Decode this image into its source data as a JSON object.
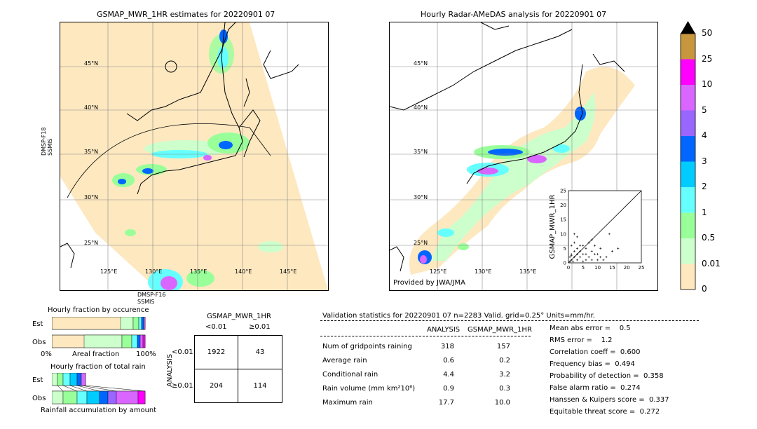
{
  "left_map": {
    "title": "GSMAP_MWR_1HR estimates for 20220901 07",
    "sensor_left": [
      "DMSP-F18",
      "SSMIS"
    ],
    "sensor_bottom": [
      "DMSP-F16",
      "SSMIS"
    ],
    "lat_labels": [
      "45°N",
      "40°N",
      "35°N",
      "30°N",
      "25°N"
    ],
    "lon_labels": [
      "125°E",
      "130°E",
      "135°E",
      "140°E",
      "145°E"
    ]
  },
  "right_map": {
    "title": "Hourly Radar-AMeDAS analysis for 20220901 07",
    "credit": "Provided by JWA/JMA",
    "lat_labels": [
      "45°N",
      "40°N",
      "35°N",
      "30°N",
      "25°N"
    ],
    "lon_labels": [
      "125°E",
      "130°E",
      "135°E"
    ]
  },
  "colorbar": {
    "labels": [
      "50",
      "25",
      "10",
      "5",
      "4",
      "3",
      "2",
      "1",
      "0.5",
      "0.01",
      "0"
    ],
    "colors": [
      "#c8963c",
      "#ff00ff",
      "#d966ff",
      "#9966ff",
      "#0066ff",
      "#00ccff",
      "#66ffff",
      "#99ff99",
      "#ccffcc",
      "#ffe8c0"
    ]
  },
  "chart_data": [
    {
      "type": "scatter",
      "title": "",
      "xlabel": "ANALYSIS",
      "ylabel": "GSMAP_MWR_1HR",
      "xlim": [
        0,
        25
      ],
      "ylim": [
        0,
        25
      ],
      "xticks": [
        "0",
        "5",
        "10",
        "15",
        "20",
        "25"
      ],
      "yticks": [
        "0",
        "5",
        "10",
        "15",
        "20",
        "25"
      ],
      "points": [
        [
          1,
          1
        ],
        [
          2,
          2
        ],
        [
          1,
          3
        ],
        [
          3,
          1
        ],
        [
          4,
          2
        ],
        [
          2,
          4
        ],
        [
          5,
          3
        ],
        [
          6,
          1
        ],
        [
          7,
          2
        ],
        [
          3,
          5
        ],
        [
          8,
          1
        ],
        [
          9,
          3
        ],
        [
          1,
          6
        ],
        [
          2,
          7
        ],
        [
          4,
          6
        ],
        [
          10,
          3
        ],
        [
          11,
          5
        ],
        [
          13,
          2
        ],
        [
          14,
          10
        ],
        [
          8,
          8
        ],
        [
          3,
          9
        ],
        [
          9,
          6
        ],
        [
          6,
          5
        ],
        [
          17,
          5
        ],
        [
          0.5,
          2
        ],
        [
          1.5,
          0.5
        ],
        [
          5,
          0.5
        ],
        [
          12,
          1
        ],
        [
          7,
          7
        ],
        [
          2,
          10
        ],
        [
          4,
          4
        ],
        [
          6,
          3
        ],
        [
          10,
          1
        ],
        [
          15,
          4
        ],
        [
          0.5,
          0.5
        ],
        [
          1,
          2.5
        ],
        [
          3,
          3
        ],
        [
          5,
          6
        ],
        [
          8,
          4
        ],
        [
          11,
          2
        ]
      ]
    },
    {
      "type": "bar",
      "title": "Hourly fraction by occurence",
      "categories": [
        "Est",
        "Obs"
      ],
      "xlabel": "Areal fraction",
      "xtick_labels": [
        "0%",
        "100%"
      ]
    },
    {
      "type": "bar",
      "title": "Hourly fraction of total rain",
      "categories": [
        "Est",
        "Obs"
      ],
      "xlabel": "Rainfall accumulation by amount"
    }
  ],
  "contingency": {
    "title": "GSMAP_MWR_1HR",
    "col_headers": [
      "<0.01",
      "≥0.01"
    ],
    "row_axis": "ANALYSIS",
    "row_headers": [
      "<0.01",
      "≥0.01"
    ],
    "cells": [
      [
        "1922",
        "43"
      ],
      [
        "204",
        "114"
      ]
    ]
  },
  "validation": {
    "header": "Validation statistics for 20220901 07  n=2283 Valid. grid=0.25° Units=mm/hr.",
    "col_analysis": "ANALYSIS",
    "col_gsmap": "GSMAP_MWR_1HR",
    "rows": [
      {
        "label": "Num of gridpoints raining",
        "a": "318",
        "g": "157"
      },
      {
        "label": "Average rain",
        "a": "0.6",
        "g": "0.2"
      },
      {
        "label": "Conditional rain",
        "a": "4.4",
        "g": "3.2"
      },
      {
        "label": "Rain volume (mm km²10⁶)",
        "a": "0.9",
        "g": "0.3"
      },
      {
        "label": "Maximum rain",
        "a": "17.7",
        "g": "10.0"
      }
    ],
    "scores": [
      "Mean abs error =    0.5",
      "RMS error =    1.2",
      "Correlation coeff =  0.600",
      "Frequency bias =  0.494",
      "Probability of detection =  0.358",
      "False alarm ratio =  0.274",
      "Hanssen & Kuipers score =  0.337",
      "Equitable threat score =  0.272"
    ]
  }
}
